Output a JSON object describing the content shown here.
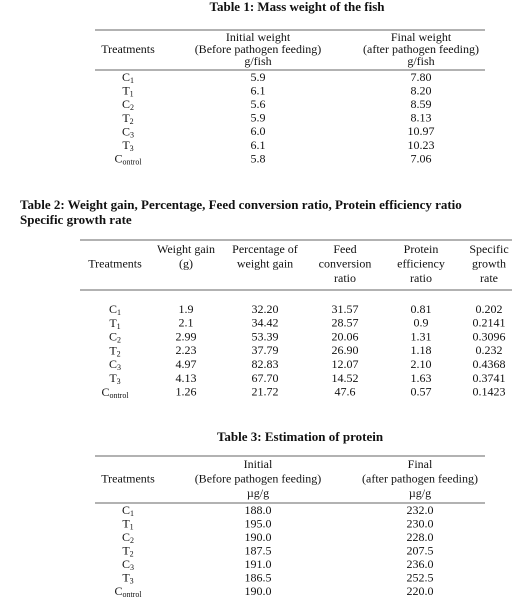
{
  "table1": {
    "title": [
      "Table 1: Mass weight of the fish"
    ],
    "columns": [
      [
        "Treatments"
      ],
      [
        "Initial weight",
        "(Before pathogen feeding)",
        "g/fish"
      ],
      [
        "Final weight",
        "(after pathogen feeding)",
        "g/fish"
      ]
    ],
    "rows": [
      [
        {
          "base": "C",
          "sub": "1"
        },
        "5.9",
        "7.80"
      ],
      [
        {
          "base": "T",
          "sub": "1"
        },
        "6.1",
        "8.20"
      ],
      [
        {
          "base": "C",
          "sub": "2"
        },
        "5.6",
        "8.59"
      ],
      [
        {
          "base": "T",
          "sub": "2"
        },
        "5.9",
        "8.13"
      ],
      [
        {
          "base": "C",
          "sub": "3"
        },
        "6.0",
        "10.97"
      ],
      [
        {
          "base": "T",
          "sub": "3"
        },
        "6.1",
        "10.23"
      ],
      [
        {
          "base": "C",
          "sub": "ontrol"
        },
        "5.8",
        "7.06"
      ]
    ]
  },
  "table2": {
    "title": [
      "Table 2: Weight gain, Percentage, Feed conversion ratio, Protein efficiency ratio",
      "Specific growth rate"
    ],
    "columns": [
      [
        "Treatments"
      ],
      [
        "Weight gain",
        "(g)"
      ],
      [
        "Percentage of",
        "weight gain"
      ],
      [
        "Feed",
        "conversion",
        "ratio"
      ],
      [
        "Protein",
        "efficiency",
        "ratio"
      ],
      [
        "Specific",
        "growth",
        "rate"
      ]
    ],
    "rows": [
      [
        {
          "base": "C",
          "sub": "1"
        },
        "1.9",
        "32.20",
        "31.57",
        "0.81",
        "0.202"
      ],
      [
        {
          "base": "T",
          "sub": "1"
        },
        "2.1",
        "34.42",
        "28.57",
        "0.9",
        "0.2141"
      ],
      [
        {
          "base": "C",
          "sub": "2"
        },
        "2.99",
        "53.39",
        "20.06",
        "1.31",
        "0.3096"
      ],
      [
        {
          "base": "T",
          "sub": "2"
        },
        "2.23",
        "37.79",
        "26.90",
        "1.18",
        "0.232"
      ],
      [
        {
          "base": "C",
          "sub": "3"
        },
        "4.97",
        "82.83",
        "12.07",
        "2.10",
        "0.4368"
      ],
      [
        {
          "base": "T",
          "sub": "3"
        },
        "4.13",
        "67.70",
        "14.52",
        "1.63",
        "0.3741"
      ],
      [
        {
          "base": "C",
          "sub": "ontrol"
        },
        "1.26",
        "21.72",
        "47.6",
        "0.57",
        "0.1423"
      ]
    ]
  },
  "table3": {
    "title": [
      "Table 3: Estimation of protein"
    ],
    "columns": [
      [
        "Treatments"
      ],
      [
        "Initial",
        "(Before pathogen feeding)",
        "µg/g"
      ],
      [
        "Final",
        "(after pathogen feeding)",
        "µg/g"
      ]
    ],
    "rows": [
      [
        {
          "base": "C",
          "sub": "1"
        },
        "188.0",
        "232.0"
      ],
      [
        {
          "base": "T",
          "sub": "1"
        },
        "195.0",
        "230.0"
      ],
      [
        {
          "base": "C",
          "sub": "2"
        },
        "190.0",
        "228.0"
      ],
      [
        {
          "base": "T",
          "sub": "2"
        },
        "187.5",
        "207.5"
      ],
      [
        {
          "base": "C",
          "sub": "3"
        },
        "191.0",
        "236.0"
      ],
      [
        {
          "base": "T",
          "sub": "3"
        },
        "186.5",
        "252.5"
      ],
      [
        {
          "base": "C",
          "sub": "ontrol"
        },
        "190.0",
        "220.0"
      ]
    ]
  }
}
